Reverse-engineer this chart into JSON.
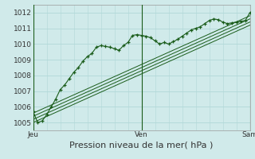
{
  "title": "Pression niveau de la mer( hPa )",
  "bg_color": "#d0eaea",
  "grid_color": "#b0d8d8",
  "line_color": "#1a5c1a",
  "ylim": [
    1004.5,
    1012.5
  ],
  "xlim": [
    0,
    96
  ],
  "xtick_positions": [
    0,
    48,
    96
  ],
  "xtick_labels": [
    "Jeu",
    "Ven",
    "Sam"
  ],
  "ytick_positions": [
    1005,
    1006,
    1007,
    1008,
    1009,
    1010,
    1011,
    1012
  ],
  "main_series_x": [
    0,
    2,
    4,
    6,
    8,
    10,
    12,
    14,
    16,
    18,
    20,
    22,
    24,
    26,
    28,
    30,
    32,
    34,
    36,
    38,
    40,
    42,
    44,
    46,
    48,
    50,
    52,
    54,
    56,
    58,
    60,
    62,
    64,
    66,
    68,
    70,
    72,
    74,
    76,
    78,
    80,
    82,
    84,
    86,
    88,
    90,
    92,
    94,
    96
  ],
  "main_series_y": [
    1005.7,
    1005.0,
    1005.1,
    1005.5,
    1006.0,
    1006.5,
    1007.1,
    1007.4,
    1007.8,
    1008.2,
    1008.5,
    1008.9,
    1009.2,
    1009.4,
    1009.8,
    1009.9,
    1009.85,
    1009.8,
    1009.7,
    1009.6,
    1009.9,
    1010.1,
    1010.55,
    1010.6,
    1010.55,
    1010.5,
    1010.4,
    1010.2,
    1010.0,
    1010.1,
    1010.0,
    1010.15,
    1010.3,
    1010.5,
    1010.7,
    1010.9,
    1011.0,
    1011.1,
    1011.3,
    1011.5,
    1011.6,
    1011.55,
    1011.4,
    1011.3,
    1011.35,
    1011.4,
    1011.45,
    1011.5,
    1012.0
  ],
  "trend_lines": [
    {
      "x": [
        0,
        96
      ],
      "y": [
        1005.0,
        1011.2
      ]
    },
    {
      "x": [
        0,
        96
      ],
      "y": [
        1005.2,
        1011.4
      ]
    },
    {
      "x": [
        0,
        96
      ],
      "y": [
        1005.4,
        1011.6
      ]
    },
    {
      "x": [
        0,
        96
      ],
      "y": [
        1005.6,
        1011.8
      ]
    }
  ],
  "vline_positions": [
    0,
    48,
    96
  ],
  "title_fontsize": 8,
  "tick_fontsize": 6.5
}
